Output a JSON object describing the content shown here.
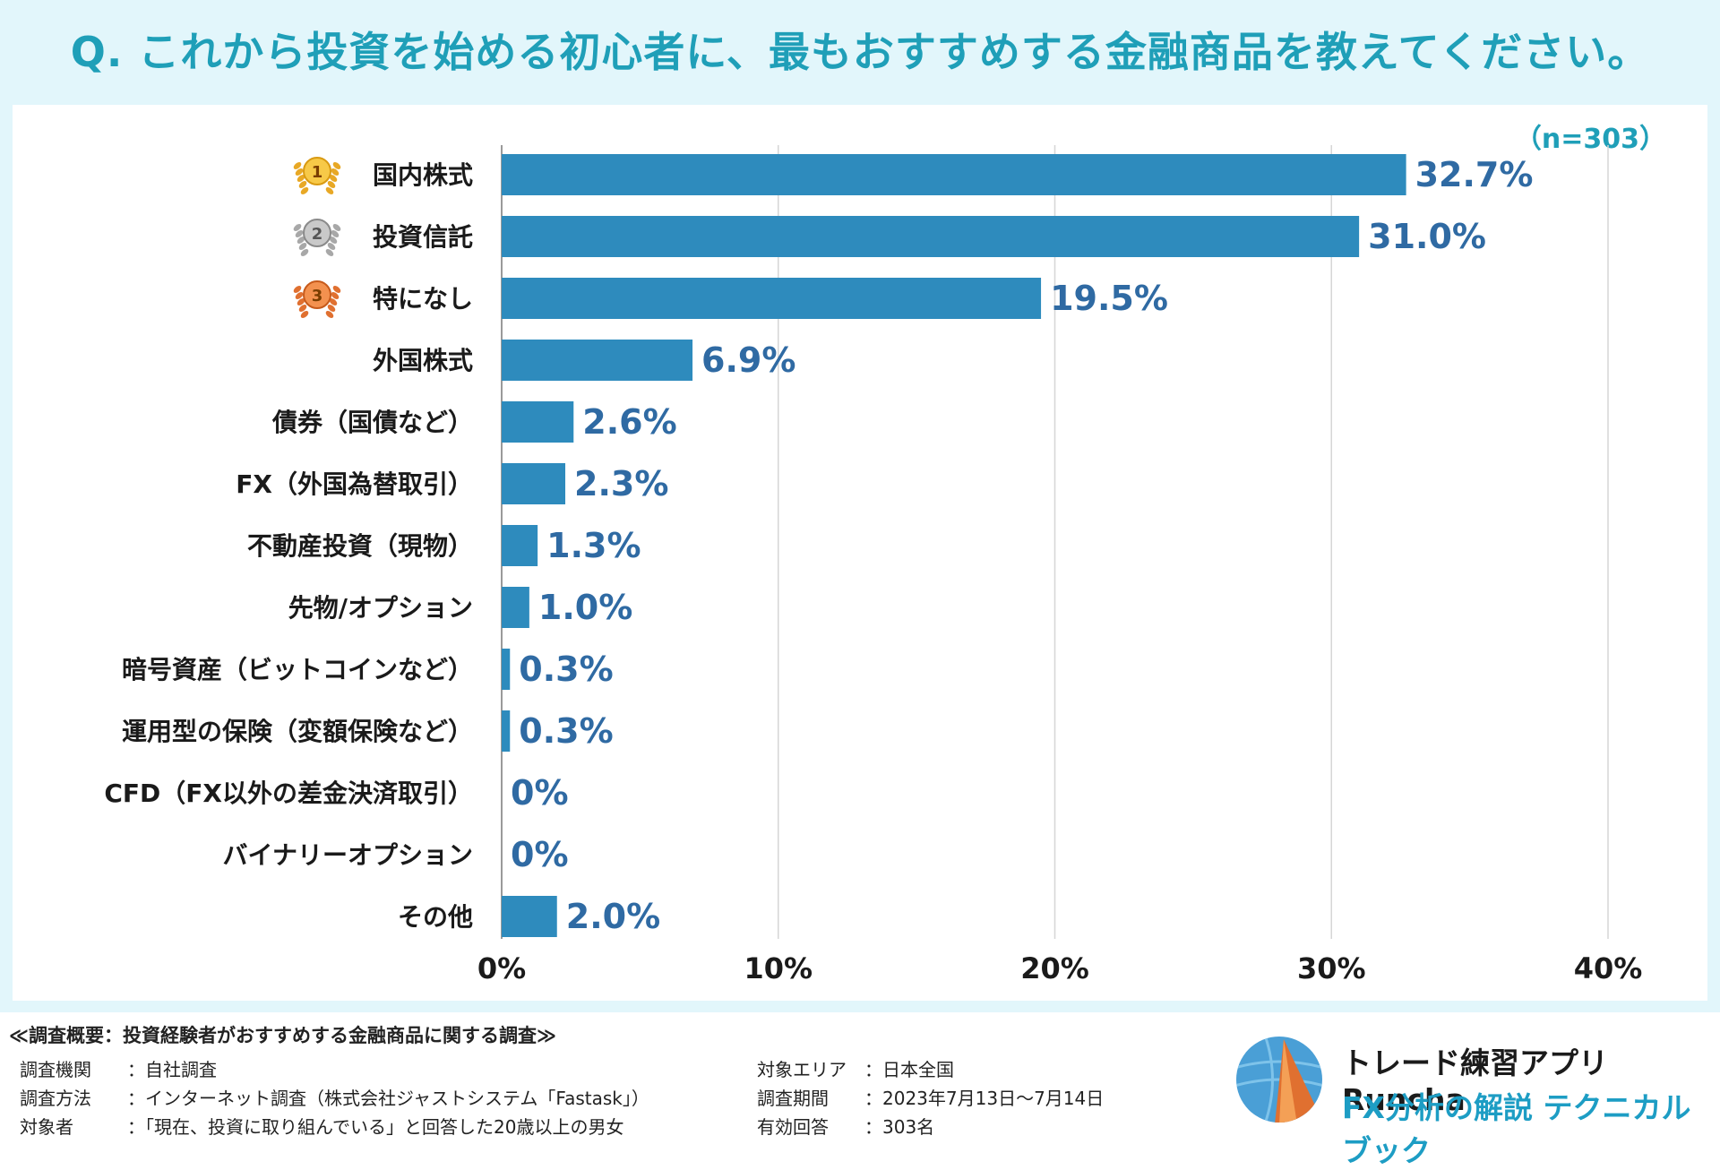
{
  "title": "Q. これから投資を始める初心者に、最もおすすめする金融商品を教えてください。",
  "sample_size": "（n=303）",
  "chart_data": {
    "type": "bar",
    "orientation": "horizontal",
    "categories": [
      "国内株式",
      "投資信託",
      "特になし",
      "外国株式",
      "債券（国債など）",
      "FX（外国為替取引）",
      "不動産投資（現物）",
      "先物/オプション",
      "暗号資産（ビットコインなど）",
      "運用型の保険（変額保険など）",
      "CFD（FX以外の差金決済取引）",
      "バイナリーオプション",
      "その他"
    ],
    "values": [
      32.7,
      31.0,
      19.5,
      6.9,
      2.6,
      2.3,
      1.3,
      1.0,
      0.3,
      0.3,
      0,
      0,
      2.0
    ],
    "value_labels": [
      "32.7%",
      "31.0%",
      "19.5%",
      "6.9%",
      "2.6%",
      "2.3%",
      "1.3%",
      "1.0%",
      "0.3%",
      "0.3%",
      "0%",
      "0%",
      "2.0%"
    ],
    "xlim": [
      0,
      40
    ],
    "xticks": [
      0,
      10,
      20,
      30,
      40
    ],
    "xtick_labels": [
      "0%",
      "10%",
      "20%",
      "30%",
      "40%"
    ],
    "grid": true,
    "bar_color": "#2e8bbd",
    "label_color": "#2f6aa3",
    "rank_badges": [
      "1",
      "2",
      "3"
    ]
  },
  "survey": {
    "title": "≪調査概要：投資経験者がおすすめする金融商品に関する調査≫",
    "left": [
      {
        "key": "調査機関",
        "value": "：自社調査"
      },
      {
        "key": "調査方法",
        "value": "：インターネット調査（株式会社ジャストシステム「Fastask」）"
      },
      {
        "key": "対象者",
        "value": "：「現在、投資に取り組んでいる」と回答した20歳以上の男女"
      }
    ],
    "right": [
      {
        "key": "対象エリア",
        "value": "：日本全国"
      },
      {
        "key": "調査期間",
        "value": "：2023年7月13日〜7月14日"
      },
      {
        "key": "有効回答",
        "value": "：303名"
      }
    ]
  },
  "brand": {
    "line1": "トレード練習アプリ Runcha",
    "line2": "FX分析の解説 テクニカルブック",
    "logo_icon": "runcha-logo-icon"
  }
}
